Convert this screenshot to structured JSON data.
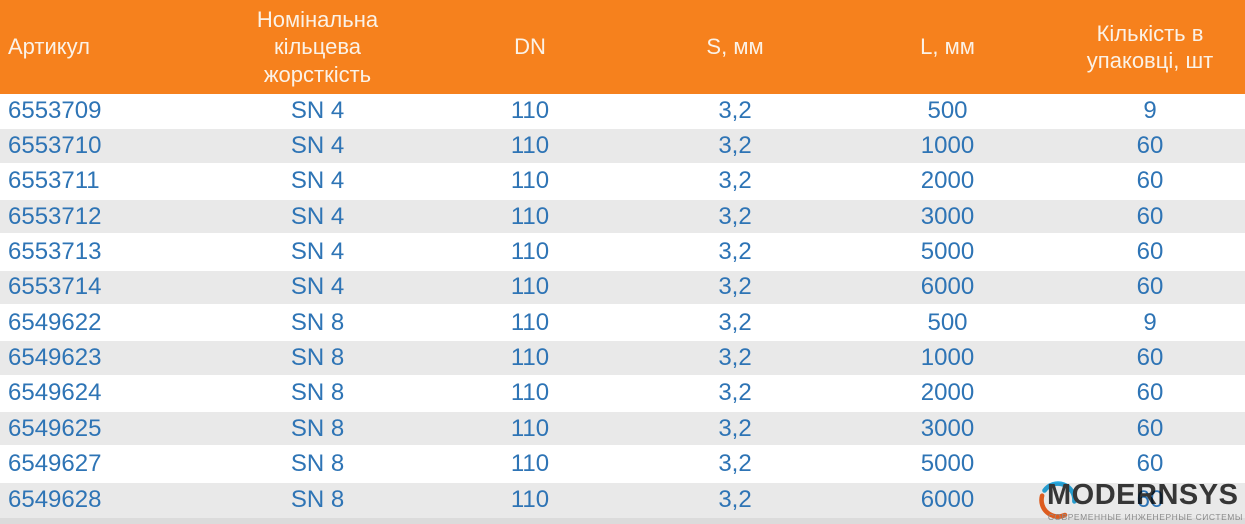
{
  "table": {
    "columns": [
      "Артикул",
      "Номінальна кільцева жорсткість",
      "DN",
      "S, мм",
      "L, мм",
      "Кількість в упаковці, шт"
    ],
    "rows": [
      [
        "6553709",
        "SN 4",
        "110",
        "3,2",
        "500",
        "9"
      ],
      [
        "6553710",
        "SN 4",
        "110",
        "3,2",
        "1000",
        "60"
      ],
      [
        "6553711",
        "SN 4",
        "110",
        "3,2",
        "2000",
        "60"
      ],
      [
        "6553712",
        "SN 4",
        "110",
        "3,2",
        "3000",
        "60"
      ],
      [
        "6553713",
        "SN 4",
        "110",
        "3,2",
        "5000",
        "60"
      ],
      [
        "6553714",
        "SN 4",
        "110",
        "3,2",
        "6000",
        "60"
      ],
      [
        "6549622",
        "SN 8",
        "110",
        "3,2",
        "500",
        "9"
      ],
      [
        "6549623",
        "SN 8",
        "110",
        "3,2",
        "1000",
        "60"
      ],
      [
        "6549624",
        "SN 8",
        "110",
        "3,2",
        "2000",
        "60"
      ],
      [
        "6549625",
        "SN 8",
        "110",
        "3,2",
        "3000",
        "60"
      ],
      [
        "6549627",
        "SN 8",
        "110",
        "3,2",
        "5000",
        "60"
      ],
      [
        "6549628",
        "SN 8",
        "110",
        "3,2",
        "6000",
        "60"
      ]
    ]
  },
  "logo": {
    "brand": "MODERNSYS",
    "tagline": "СОВРЕМЕННЫЕ ИНЖЕНЕРНЫЕ СИСТЕМЫ"
  },
  "colors": {
    "header_bg": "#F6811D",
    "header_text": "#FBF2E7",
    "cell_text": "#2E74B5",
    "row_alt_bg": "#E9E9E9",
    "bottom_strip": "#DBDBDB",
    "logo_blue": "#29ABE2",
    "logo_orange": "#F26522",
    "logo_text": "#3B3B3B",
    "logo_tagline": "#9A9A9A"
  }
}
